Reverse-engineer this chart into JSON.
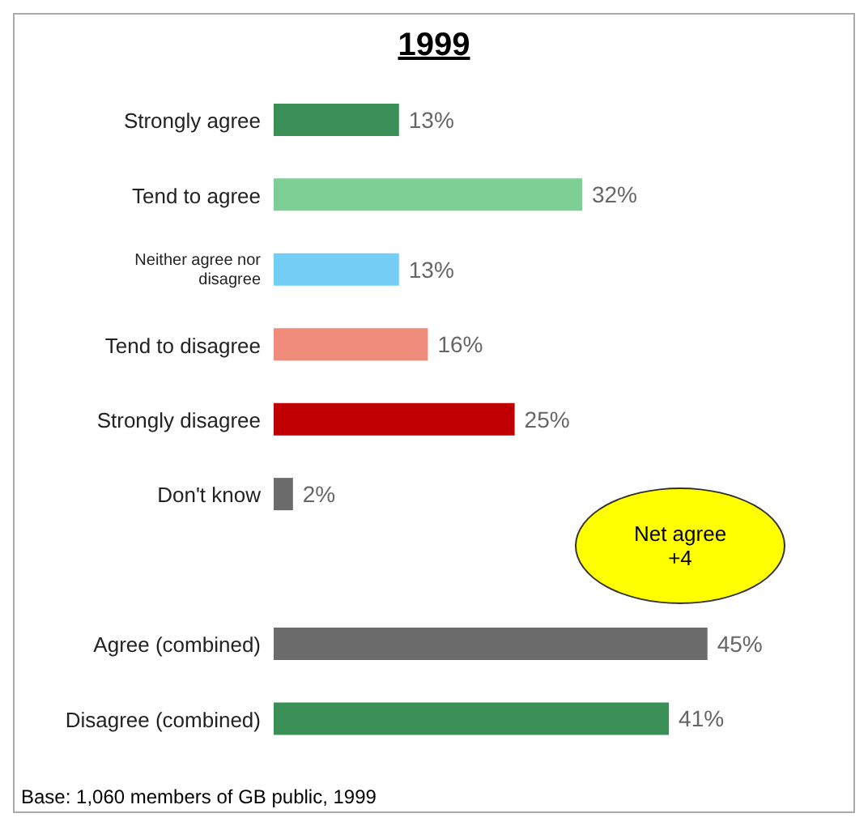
{
  "chart_data": {
    "type": "bar",
    "orientation": "horizontal",
    "title": "1999",
    "categories": [
      "Strongly agree",
      "Tend to agree",
      "Neither agree nor disagree",
      "Tend to disagree",
      "Strongly disagree",
      "Don't know",
      null,
      "Agree (combined)",
      "Disagree (combined)"
    ],
    "values": [
      13,
      32,
      13,
      16,
      25,
      2,
      null,
      45,
      41
    ],
    "colors": [
      "#3a8f57",
      "#7dcf96",
      "#74cdf5",
      "#f08c7c",
      "#c00000",
      "#6b6b6b",
      "#6b6b6b",
      "#6b6b6b",
      "#3a8f57"
    ],
    "value_labels": [
      "13%",
      "32%",
      "13%",
      "16%",
      "25%",
      "2%",
      null,
      "45%",
      "41%"
    ],
    "annotations": [
      "Net agree\n+4",
      "Base:  1,060 members of GB public, 1999"
    ]
  }
}
